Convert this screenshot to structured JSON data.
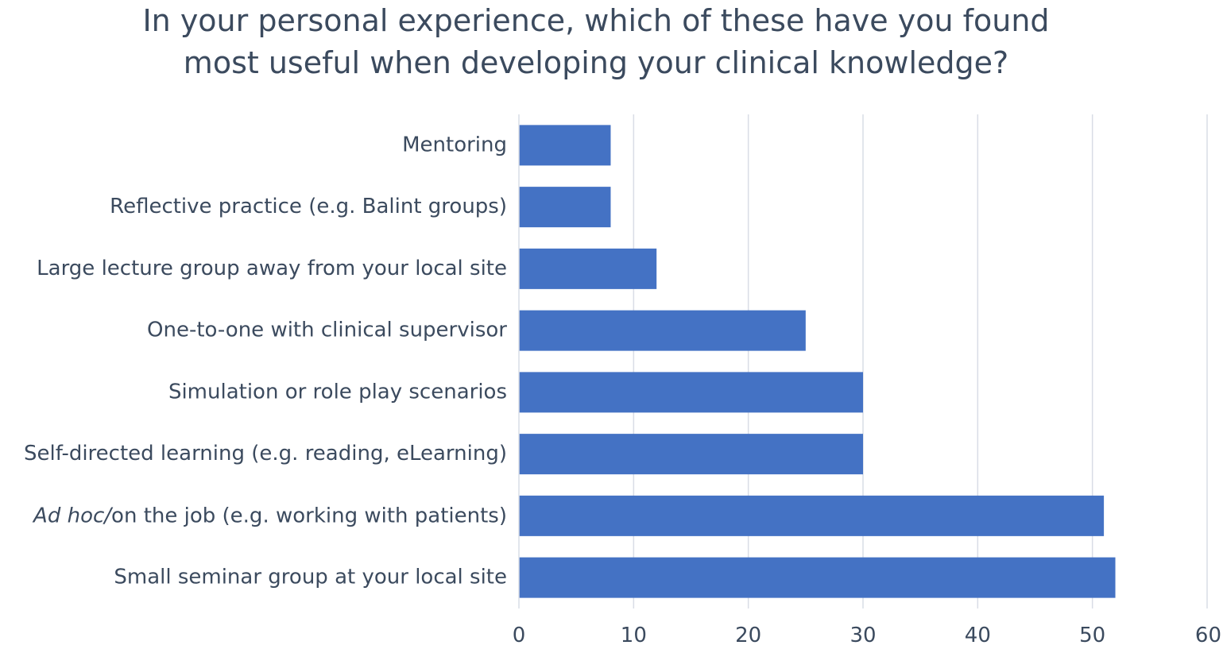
{
  "chart_data": {
    "type": "bar",
    "orientation": "horizontal",
    "title_lines": [
      "In your personal experience, which of these have you found",
      "most useful when developing your clinical knowledge?"
    ],
    "categories": [
      "Mentoring",
      "Reflective practice (e.g. Balint groups)",
      "Large lecture group away from your local site",
      "One-to-one with clinical supervisor",
      "Simulation or role play scenarios",
      "Self-directed learning (e.g. reading, eLearning)",
      "Ad hoc/on the job (e.g. working with patients)",
      "Small seminar group at your local site"
    ],
    "category_italic_prefix": {
      "Ad hoc/on the job (e.g. working with patients)": "Ad hoc/"
    },
    "values": [
      8,
      8,
      12,
      25,
      30,
      30,
      51,
      52
    ],
    "xlim": [
      0,
      60
    ],
    "xticks": [
      0,
      10,
      20,
      30,
      40,
      50,
      60
    ],
    "xlabel": "",
    "ylabel": "",
    "grid": "vertical",
    "legend": "none",
    "colors": {
      "bar": "#4472c4",
      "grid": "#d9dde6",
      "text": "#3b4a5e"
    }
  }
}
